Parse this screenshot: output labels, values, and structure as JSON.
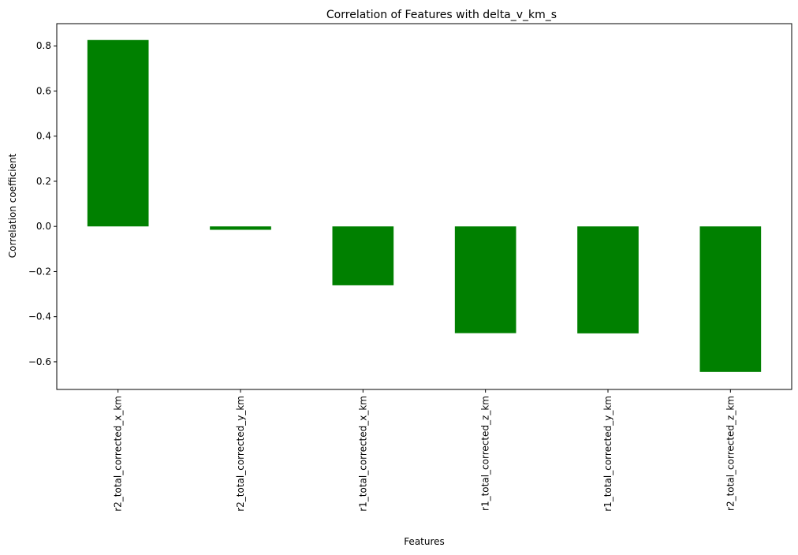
{
  "chart_data": {
    "type": "bar",
    "title": "Correlation of Features with delta_v_km_s",
    "xlabel": "Features",
    "ylabel": "Correlation coefficient",
    "categories": [
      "r2_total_corrected_x_km",
      "r2_total_corrected_y_km",
      "r1_total_corrected_x_km",
      "r1_total_corrected_z_km",
      "r1_total_corrected_y_km",
      "r2_total_corrected_z_km"
    ],
    "values": [
      0.826,
      -0.015,
      -0.261,
      -0.473,
      -0.474,
      -0.645
    ],
    "ylim": [
      -0.7225,
      0.8985
    ],
    "yticks": [
      -0.6,
      -0.4,
      -0.2,
      0.0,
      0.2,
      0.4,
      0.6,
      0.8
    ],
    "ytick_labels": [
      "−0.6",
      "−0.4",
      "−0.2",
      "0.0",
      "0.2",
      "0.4",
      "0.6",
      "0.8"
    ],
    "bar_color": "#008000",
    "grid": false,
    "legend": "none"
  }
}
